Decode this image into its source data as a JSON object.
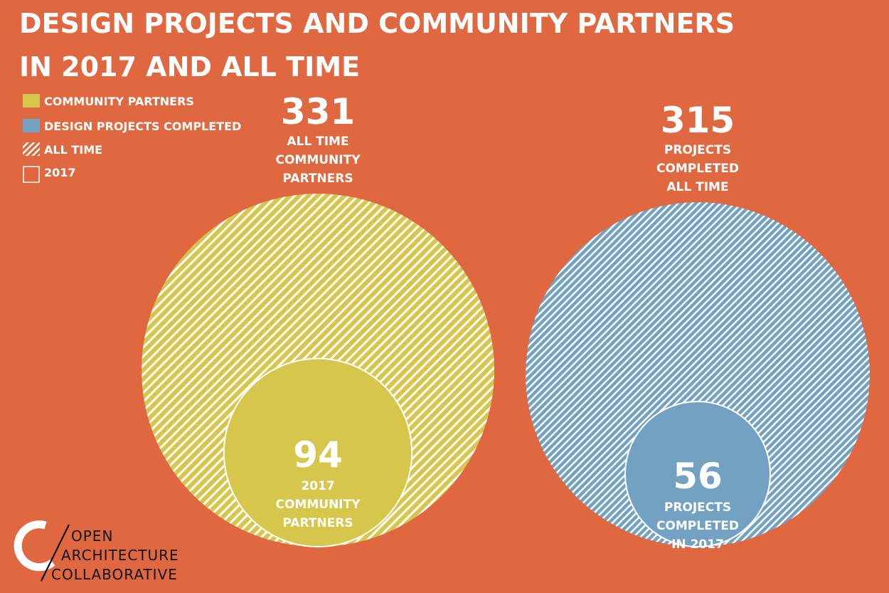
{
  "title": {
    "line1": "DESIGN PROJECTS AND COMMUNITY PARTNERS",
    "line2": "IN 2017 AND ALL TIME"
  },
  "legend": {
    "community_partners": "COMMUNITY PARTNERS",
    "design_projects": "DESIGN PROJECTS COMPLETED",
    "all_time": "ALL TIME",
    "year": "2017"
  },
  "colors": {
    "background": "#e06840",
    "community": "#d6c64c",
    "projects": "#72a1c1",
    "white": "#ffffff"
  },
  "chart_data": {
    "type": "nested-bubble",
    "groups": [
      {
        "name": "COMMUNITY PARTNERS",
        "all_time": {
          "value": 331,
          "label_lines": [
            "ALL TIME",
            "COMMUNITY",
            "PARTNERS"
          ]
        },
        "year_2017": {
          "value": 94,
          "label_lines": [
            "2017",
            "COMMUNITY",
            "PARTNERS"
          ]
        }
      },
      {
        "name": "DESIGN PROJECTS COMPLETED",
        "all_time": {
          "value": 315,
          "label_lines": [
            "PROJECTS",
            "COMPLETED",
            "ALL TIME"
          ]
        },
        "year_2017": {
          "value": 56,
          "label_lines": [
            "PROJECTS",
            "COMPLETED",
            "IN 2017"
          ]
        }
      }
    ]
  },
  "logo": {
    "line1": "OPEN",
    "line2": "ARCHITECTURE",
    "line3": "COLLABORATIVE"
  }
}
